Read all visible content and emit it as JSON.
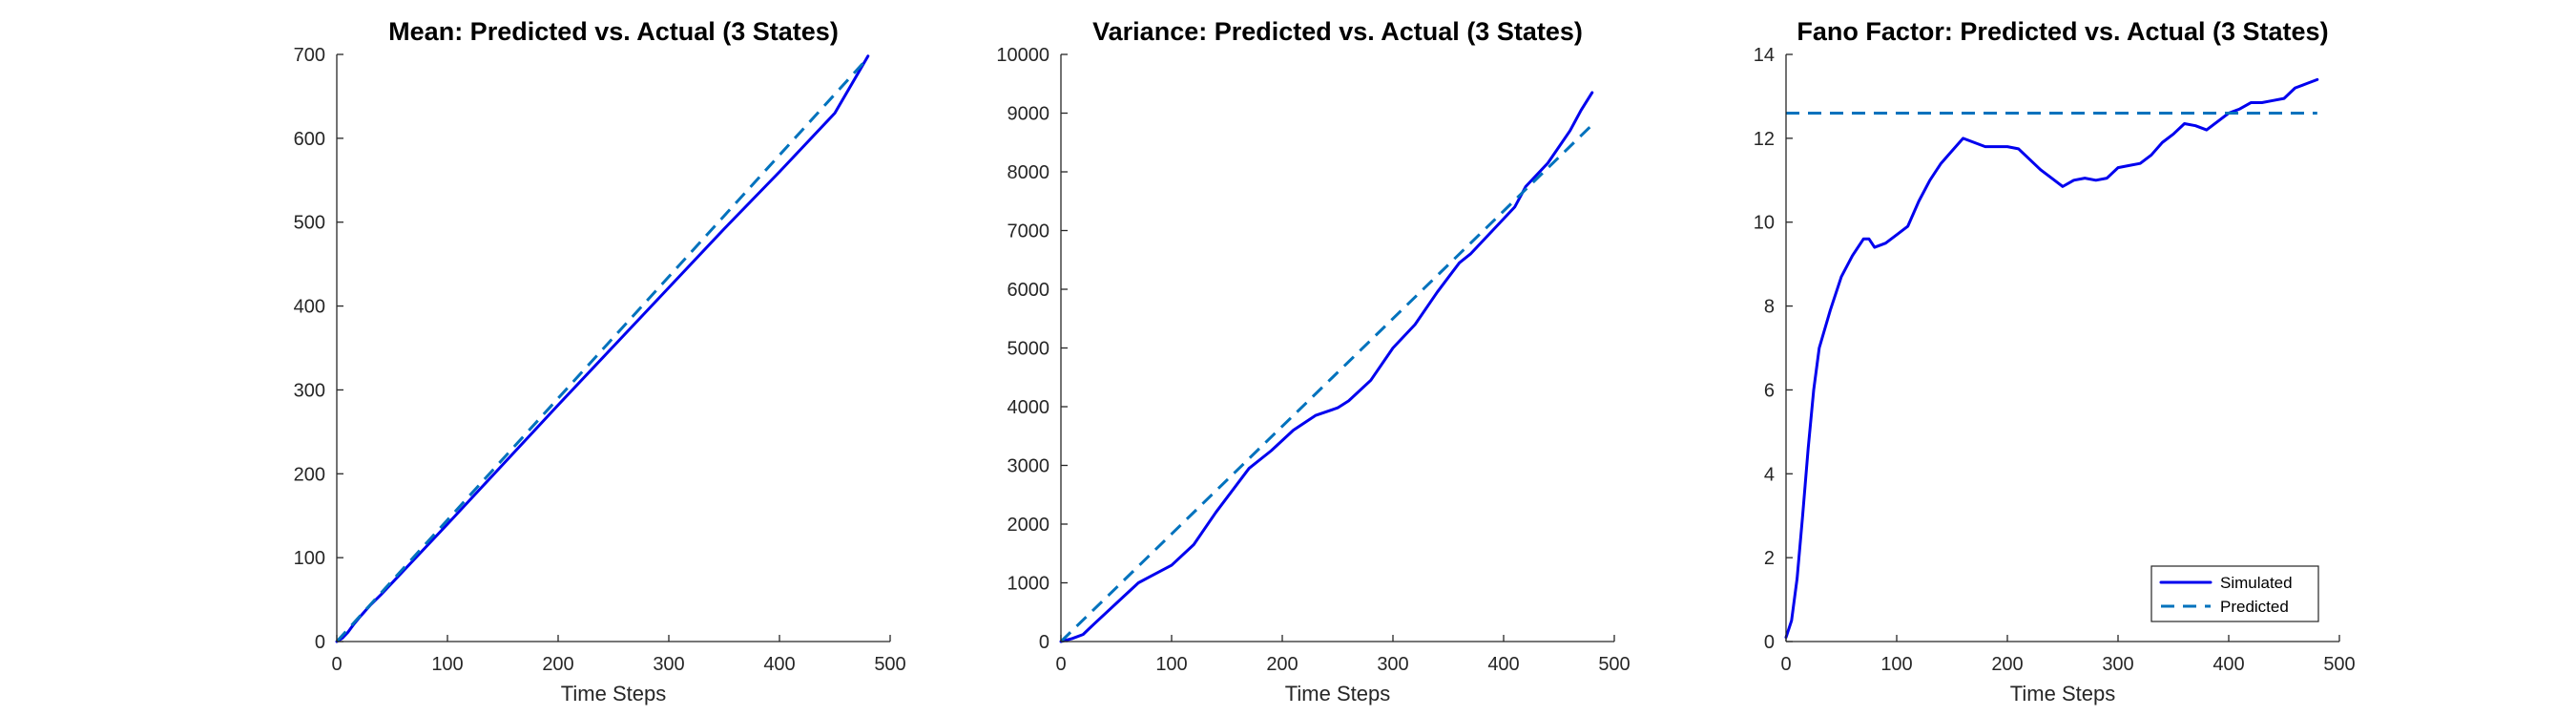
{
  "chart_data": [
    {
      "type": "line",
      "title": "Mean: Predicted vs. Actual (3 States)",
      "xlabel": "Time Steps",
      "ylabel": "",
      "xlim": [
        0,
        500
      ],
      "ylim": [
        0,
        700
      ],
      "xticks": [
        0,
        100,
        200,
        300,
        400,
        500
      ],
      "yticks": [
        0,
        100,
        200,
        300,
        400,
        500,
        600,
        700
      ],
      "grid": false,
      "legend": false,
      "series": [
        {
          "role": "simulated",
          "color": "#0000ee",
          "style": "solid",
          "x": [
            0,
            5,
            10,
            15,
            20,
            30,
            40,
            60,
            80,
            100,
            150,
            200,
            250,
            300,
            350,
            400,
            450,
            480
          ],
          "y": [
            0,
            4,
            11,
            20,
            28,
            43,
            56,
            84,
            112,
            140,
            211,
            282,
            352,
            422,
            492,
            560,
            630,
            698
          ]
        },
        {
          "role": "predicted",
          "color": "#0072bd",
          "style": "dashed",
          "x": [
            0,
            480
          ],
          "y": [
            0,
            696
          ]
        }
      ]
    },
    {
      "type": "line",
      "title": "Variance: Predicted vs. Actual (3 States)",
      "xlabel": "Time Steps",
      "ylabel": "",
      "xlim": [
        0,
        500
      ],
      "ylim": [
        0,
        10000
      ],
      "xticks": [
        0,
        100,
        200,
        300,
        400,
        500
      ],
      "yticks": [
        0,
        1000,
        2000,
        3000,
        4000,
        5000,
        6000,
        7000,
        8000,
        9000,
        10000
      ],
      "grid": false,
      "legend": false,
      "series": [
        {
          "role": "simulated",
          "color": "#0000ee",
          "style": "solid",
          "x": [
            0,
            10,
            20,
            30,
            50,
            70,
            80,
            100,
            120,
            140,
            160,
            170,
            190,
            210,
            230,
            250,
            260,
            280,
            300,
            320,
            340,
            360,
            370,
            390,
            410,
            420,
            440,
            460,
            470,
            480
          ],
          "y": [
            0,
            50,
            120,
            300,
            650,
            1000,
            1100,
            1300,
            1650,
            2200,
            2700,
            2950,
            3250,
            3600,
            3850,
            3980,
            4100,
            4450,
            5000,
            5400,
            5950,
            6450,
            6600,
            7000,
            7400,
            7750,
            8150,
            8700,
            9050,
            9350
          ]
        },
        {
          "role": "predicted",
          "color": "#0072bd",
          "style": "dashed",
          "x": [
            0,
            480
          ],
          "y": [
            0,
            8800
          ]
        }
      ]
    },
    {
      "type": "line",
      "title": "Fano Factor: Predicted vs. Actual (3 States)",
      "xlabel": "Time Steps",
      "ylabel": "",
      "xlim": [
        0,
        500
      ],
      "ylim": [
        0,
        14
      ],
      "xticks": [
        0,
        100,
        200,
        300,
        400,
        500
      ],
      "yticks": [
        0,
        2,
        4,
        6,
        8,
        10,
        12,
        14
      ],
      "grid": false,
      "legend": true,
      "legend_position": "bottom-right",
      "legend_entries": [
        "Simulated",
        "Predicted"
      ],
      "series": [
        {
          "role": "simulated",
          "name": "Simulated",
          "color": "#0000ee",
          "style": "solid",
          "x": [
            0,
            5,
            10,
            15,
            20,
            25,
            30,
            40,
            50,
            60,
            70,
            75,
            80,
            90,
            100,
            110,
            120,
            130,
            140,
            150,
            160,
            170,
            180,
            200,
            210,
            220,
            230,
            240,
            250,
            260,
            270,
            280,
            290,
            300,
            310,
            320,
            330,
            340,
            350,
            360,
            370,
            380,
            390,
            400,
            410,
            420,
            430,
            440,
            450,
            460,
            470,
            480
          ],
          "y": [
            0.1,
            0.5,
            1.5,
            3.0,
            4.6,
            6.0,
            7.0,
            7.9,
            8.7,
            9.2,
            9.6,
            9.6,
            9.4,
            9.5,
            9.7,
            9.9,
            10.5,
            11.0,
            11.4,
            11.7,
            12.0,
            11.9,
            11.8,
            11.8,
            11.75,
            11.5,
            11.25,
            11.05,
            10.85,
            11.0,
            11.05,
            11.0,
            11.05,
            11.3,
            11.35,
            11.4,
            11.6,
            11.9,
            12.1,
            12.35,
            12.3,
            12.2,
            12.4,
            12.6,
            12.7,
            12.85,
            12.85,
            12.9,
            12.95,
            13.2,
            13.3,
            13.4
          ]
        },
        {
          "role": "predicted",
          "name": "Predicted",
          "color": "#0072bd",
          "style": "dashed",
          "x": [
            0,
            480
          ],
          "y": [
            12.6,
            12.6
          ]
        }
      ]
    }
  ]
}
